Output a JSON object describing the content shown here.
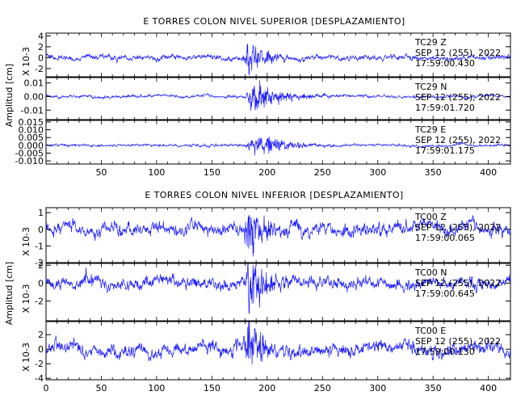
{
  "colors": {
    "trace": "#1a1aff",
    "axis": "#000000",
    "background": "#ffffff"
  },
  "chart_data": [
    {
      "type": "line",
      "title": "E TORRES COLON NIVEL SUPERIOR [DESPLAZAMIENTO]",
      "ylabel": "Amplitud [cm]",
      "xlim": [
        0,
        420
      ],
      "xticks": [
        50,
        100,
        150,
        200,
        250,
        300,
        350,
        400
      ],
      "grid": false,
      "panels": [
        {
          "channel": "TC29   Z",
          "date": "SEP 12 (255), 2022",
          "time": "17:59:00.430",
          "ylabel": "X 10-3",
          "ylim": [
            -3.5,
            4.5
          ],
          "yticks": [
            -2,
            0,
            2,
            4
          ],
          "ytick_labels": [
            "-2",
            "0",
            "2",
            "4"
          ],
          "envelope": {
            "base": 0.35,
            "peak": 3.8,
            "onset": 178,
            "decay": 13,
            "max_at": 183
          }
        },
        {
          "channel": "TC29   N",
          "date": "SEP 12 (255), 2022",
          "time": "17:59:01.720",
          "ylabel": "",
          "ylim": [
            -0.017,
            0.014
          ],
          "yticks": [
            -0.01,
            0,
            0.01
          ],
          "ytick_labels": [
            "-0.01",
            "0.00",
            "0.01"
          ],
          "envelope": {
            "base": 0.0008,
            "peak": 0.0105,
            "onset": 178,
            "decay": 24,
            "max_at": 190
          }
        },
        {
          "channel": "TC29   E",
          "date": "SEP 12 (255), 2022",
          "time": "17:59:01.175",
          "ylabel": "",
          "ylim": [
            -0.012,
            0.016
          ],
          "yticks": [
            -0.01,
            -0.005,
            0,
            0.005,
            0.01,
            0.015
          ],
          "ytick_labels": [
            "-0.010",
            "-0.005",
            "0.000",
            "0.005",
            "0.010",
            "0.015"
          ],
          "envelope": {
            "base": 0.0006,
            "peak": 0.0075,
            "onset": 178,
            "decay": 22,
            "max_at": 195
          }
        }
      ]
    },
    {
      "type": "line",
      "title": "E TORRES COLON NIVEL INFERIOR [DESPLAZAMIENTO]",
      "ylabel": "Amplitud [cm]",
      "xlim": [
        0,
        420
      ],
      "xticks": [
        0,
        50,
        100,
        150,
        200,
        250,
        300,
        350,
        400
      ],
      "grid": false,
      "panels": [
        {
          "channel": "TC00   Z",
          "date": "SEP 12 (255), 2022",
          "time": "17:59:00.065",
          "ylabel": "X 10-3",
          "ylim": [
            -2,
            1.3
          ],
          "yticks": [
            -2,
            -1,
            0,
            1
          ],
          "ytick_labels": [
            "-2",
            "-1",
            "0",
            "1"
          ],
          "envelope": {
            "base": 0.3,
            "peak": 1.5,
            "onset": 178,
            "decay": 18,
            "max_at": 182
          }
        },
        {
          "channel": "TC00   N",
          "date": "SEP 12 (255), 2022",
          "time": "17:59:00.645",
          "ylabel": "X 10-3",
          "ylim": [
            -4.2,
            2.2
          ],
          "yticks": [
            -2,
            0,
            2
          ],
          "ytick_labels": [
            "-2",
            "0",
            "2"
          ],
          "envelope": {
            "base": 0.5,
            "peak": 3.6,
            "onset": 178,
            "decay": 14,
            "max_at": 182
          }
        },
        {
          "channel": "TC00   E",
          "date": "SEP 12 (255), 2022",
          "time": "17:59:00.130",
          "ylabel": "X 10-3",
          "ylim": [
            -4.2,
            3.8
          ],
          "yticks": [
            -4,
            -2,
            0,
            2
          ],
          "ytick_labels": [
            "-4",
            "-2",
            "0",
            "2"
          ],
          "envelope": {
            "base": 0.7,
            "peak": 3.8,
            "onset": 178,
            "decay": 14,
            "max_at": 182
          }
        }
      ]
    }
  ]
}
